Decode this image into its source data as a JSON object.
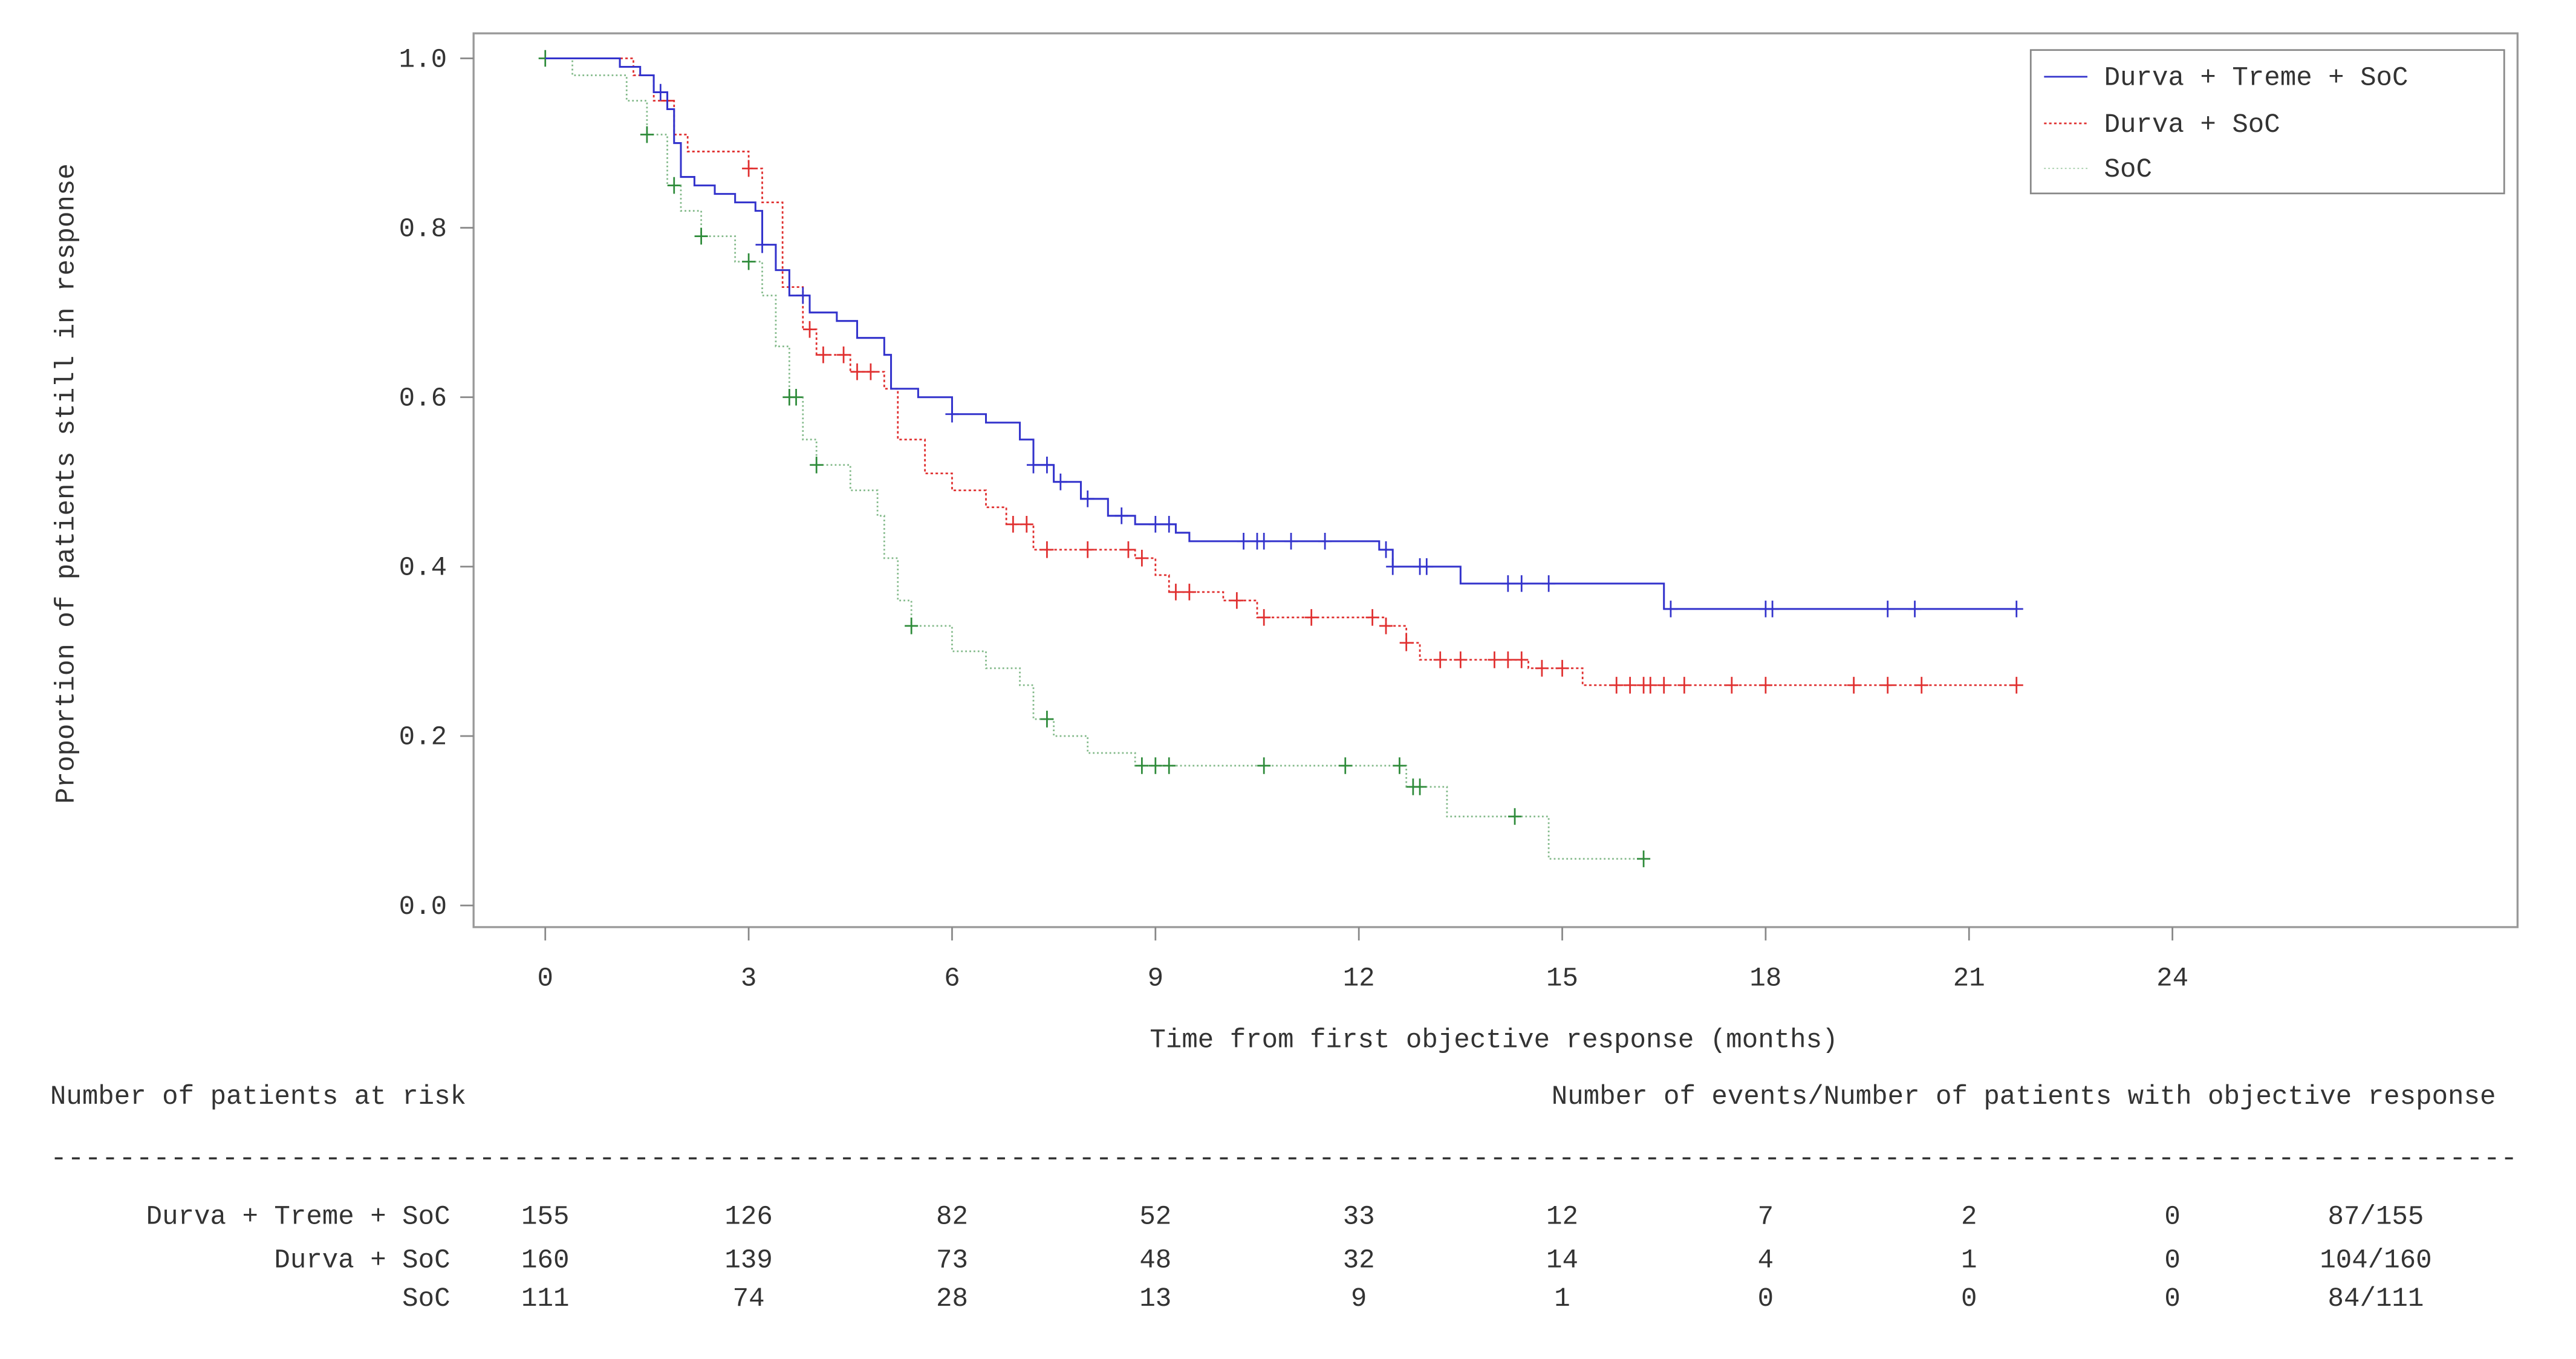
{
  "chart_data": {
    "type": "line",
    "subtype": "kaplan-meier",
    "xlabel": "Time from first objective response (months)",
    "ylabel": "Proportion of patients still in response",
    "xlim": [
      -1,
      29.2
    ],
    "ylim": [
      -0.03,
      1.03
    ],
    "xticks": [
      0,
      3,
      6,
      9,
      12,
      15,
      18,
      21,
      24
    ],
    "yticks": [
      "0.0",
      "0.2",
      "0.4",
      "0.6",
      "0.8",
      "1.0"
    ],
    "grid": false,
    "legend_position": "top-right",
    "series": [
      {
        "name": "Durva + Treme + SoC",
        "color": "#3333cc",
        "style": "solid",
        "steps": [
          [
            0,
            1.0
          ],
          [
            1.1,
            0.99
          ],
          [
            1.4,
            0.98
          ],
          [
            1.6,
            0.96
          ],
          [
            1.8,
            0.94
          ],
          [
            1.9,
            0.9
          ],
          [
            2.0,
            0.86
          ],
          [
            2.2,
            0.85
          ],
          [
            2.5,
            0.84
          ],
          [
            2.8,
            0.83
          ],
          [
            3.1,
            0.82
          ],
          [
            3.2,
            0.78
          ],
          [
            3.4,
            0.75
          ],
          [
            3.6,
            0.72
          ],
          [
            3.9,
            0.7
          ],
          [
            4.3,
            0.69
          ],
          [
            4.6,
            0.67
          ],
          [
            5.0,
            0.65
          ],
          [
            5.1,
            0.61
          ],
          [
            5.5,
            0.6
          ],
          [
            6.0,
            0.58
          ],
          [
            6.5,
            0.57
          ],
          [
            7.0,
            0.55
          ],
          [
            7.2,
            0.52
          ],
          [
            7.5,
            0.5
          ],
          [
            7.9,
            0.48
          ],
          [
            8.3,
            0.46
          ],
          [
            8.7,
            0.45
          ],
          [
            9.3,
            0.44
          ],
          [
            9.5,
            0.43
          ],
          [
            12.3,
            0.42
          ],
          [
            12.5,
            0.4
          ],
          [
            13.5,
            0.38
          ],
          [
            16.5,
            0.35
          ]
        ],
        "end": 21.7,
        "censored": [
          1.7,
          3.2,
          3.8,
          6.0,
          7.2,
          7.4,
          7.6,
          8.0,
          8.5,
          9.0,
          9.2,
          10.3,
          10.5,
          10.6,
          11.0,
          11.5,
          12.4,
          12.5,
          12.9,
          13.0,
          14.2,
          14.4,
          14.8,
          16.6,
          18.0,
          18.1,
          19.8,
          20.2,
          21.7
        ]
      },
      {
        "name": "Durva + SoC",
        "color": "#e03030",
        "style": "dotted",
        "steps": [
          [
            0,
            1.0
          ],
          [
            1.1,
            1.0
          ],
          [
            1.3,
            0.98
          ],
          [
            1.6,
            0.95
          ],
          [
            1.9,
            0.91
          ],
          [
            2.1,
            0.89
          ],
          [
            3.0,
            0.87
          ],
          [
            3.2,
            0.83
          ],
          [
            3.5,
            0.73
          ],
          [
            3.8,
            0.68
          ],
          [
            4.0,
            0.65
          ],
          [
            4.5,
            0.63
          ],
          [
            5.0,
            0.61
          ],
          [
            5.2,
            0.55
          ],
          [
            5.6,
            0.51
          ],
          [
            6.0,
            0.49
          ],
          [
            6.5,
            0.47
          ],
          [
            6.8,
            0.45
          ],
          [
            7.2,
            0.42
          ],
          [
            8.7,
            0.41
          ],
          [
            9.0,
            0.39
          ],
          [
            9.2,
            0.37
          ],
          [
            10.0,
            0.36
          ],
          [
            10.5,
            0.34
          ],
          [
            12.4,
            0.33
          ],
          [
            12.7,
            0.31
          ],
          [
            12.9,
            0.29
          ],
          [
            14.5,
            0.28
          ],
          [
            15.3,
            0.26
          ]
        ],
        "end": 21.7,
        "censored": [
          1.8,
          3.0,
          3.9,
          4.1,
          4.4,
          4.6,
          4.8,
          6.9,
          7.1,
          7.4,
          8.0,
          8.6,
          8.8,
          9.3,
          9.5,
          10.2,
          10.6,
          11.3,
          12.2,
          12.4,
          12.7,
          13.2,
          13.5,
          14.0,
          14.2,
          14.4,
          14.7,
          15.0,
          15.8,
          16.0,
          16.2,
          16.3,
          16.5,
          16.8,
          17.5,
          18.0,
          19.3,
          19.8,
          20.3,
          21.7
        ]
      },
      {
        "name": "SoC",
        "color": "#2e8b3a",
        "style": "dotted",
        "steps": [
          [
            0,
            1.0
          ],
          [
            0.4,
            0.98
          ],
          [
            1.2,
            0.95
          ],
          [
            1.5,
            0.91
          ],
          [
            1.8,
            0.85
          ],
          [
            2.0,
            0.82
          ],
          [
            2.3,
            0.79
          ],
          [
            2.8,
            0.76
          ],
          [
            3.2,
            0.72
          ],
          [
            3.4,
            0.66
          ],
          [
            3.6,
            0.6
          ],
          [
            3.8,
            0.55
          ],
          [
            4.0,
            0.52
          ],
          [
            4.5,
            0.49
          ],
          [
            4.9,
            0.46
          ],
          [
            5.0,
            0.41
          ],
          [
            5.2,
            0.36
          ],
          [
            5.4,
            0.33
          ],
          [
            6.0,
            0.3
          ],
          [
            6.5,
            0.28
          ],
          [
            7.0,
            0.26
          ],
          [
            7.2,
            0.22
          ],
          [
            7.5,
            0.2
          ],
          [
            8.0,
            0.18
          ],
          [
            8.7,
            0.165
          ],
          [
            12.7,
            0.14
          ],
          [
            13.3,
            0.105
          ],
          [
            14.8,
            0.055
          ]
        ],
        "end": 16.2,
        "censored": [
          0,
          1.5,
          1.9,
          2.3,
          3.0,
          3.6,
          3.7,
          4.0,
          5.4,
          7.4,
          8.8,
          9.0,
          9.2,
          10.6,
          11.8,
          12.6,
          12.8,
          12.9,
          14.3,
          16.2
        ]
      }
    ],
    "risk_table": {
      "left_title": "Number of patients at risk",
      "right_title": "Number of events/Number of patients with objective response",
      "divider": "------------------------------------------------------------------------------------------------------------------------------------------------",
      "rows": [
        {
          "label": "Durva + Treme + SoC",
          "values": [
            "155",
            "126",
            "82",
            "52",
            "33",
            "12",
            "7",
            "2",
            "0"
          ],
          "events": "87/155"
        },
        {
          "label": "Durva + SoC",
          "values": [
            "160",
            "139",
            "73",
            "48",
            "32",
            "14",
            "4",
            "1",
            "0"
          ],
          "events": "104/160"
        },
        {
          "label": "SoC",
          "values": [
            "111",
            "74",
            "28",
            "13",
            "9",
            "1",
            "0",
            "0",
            "0"
          ],
          "events": "84/111"
        }
      ]
    }
  }
}
